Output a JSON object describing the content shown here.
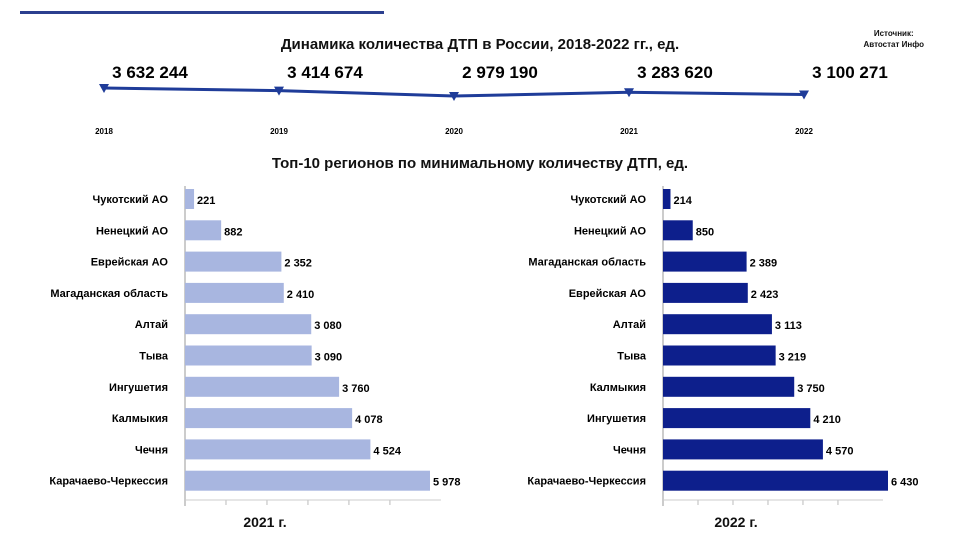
{
  "header": {
    "source_line1": "Источник:",
    "source_line2": "Автостат Инфо"
  },
  "chart_data": [
    {
      "type": "line",
      "title": "Динамика количества ДТП в России, 2018-2022 гг., ед.",
      "x": [
        "2018",
        "2019",
        "2020",
        "2021",
        "2022"
      ],
      "values": [
        3632244,
        3414674,
        2979190,
        3283620,
        3100271
      ],
      "value_labels": [
        "3 632 244",
        "3 414 674",
        "2 979 190",
        "3 283 620",
        "3 100 271"
      ],
      "color": "#1f3c99",
      "grid": false
    },
    {
      "type": "bar",
      "orientation": "horizontal",
      "title": "Топ-10 регионов по минимальному количеству ДТП, ед.",
      "panels": [
        {
          "label": "2021 г.",
          "color": "#a8b6e0",
          "categories": [
            "Чукотский АО",
            "Ненецкий АО",
            "Еврейская АО",
            "Магаданская область",
            "Алтай",
            "Тыва",
            "Ингушетия",
            "Калмыкия",
            "Чечня",
            "Карачаево-Черкессия"
          ],
          "values": [
            221,
            882,
            2352,
            2410,
            3080,
            3090,
            3760,
            4078,
            4524,
            5978
          ],
          "value_labels": [
            "221",
            "882",
            "2 352",
            "2 410",
            "3 080",
            "3 090",
            "3 760",
            "4 078",
            "4 524",
            "5 978"
          ],
          "xlim": [
            0,
            6000
          ]
        },
        {
          "label": "2022 г.",
          "color": "#0d1f8c",
          "categories": [
            "Чукотский АО",
            "Ненецкий АО",
            "Магаданская область",
            "Еврейская АО",
            "Алтай",
            "Тыва",
            "Калмыкия",
            "Ингушетия",
            "Чечня",
            "Карачаево-Черкессия"
          ],
          "values": [
            214,
            850,
            2389,
            2423,
            3113,
            3219,
            3750,
            4210,
            4570,
            6430
          ],
          "value_labels": [
            "214",
            "850",
            "2 389",
            "2 423",
            "3 113",
            "3 219",
            "3 750",
            "4 210",
            "4 570",
            "6 430"
          ],
          "xlim": [
            0,
            6500
          ]
        }
      ]
    }
  ]
}
